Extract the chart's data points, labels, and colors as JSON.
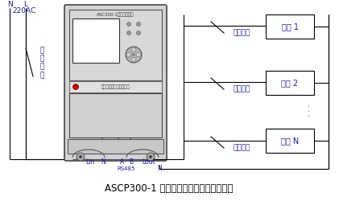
{
  "title": "ASCP300-1 型限流式保护器的应用接线图",
  "bg_color": "#ffffff",
  "line_color": "#000000",
  "text_color_blue": "#1a1aaa",
  "N_label": "N",
  "L_label": "L",
  "voltage_label": "220AC",
  "switch_label": "进\n户\n开\n关",
  "Lin_label": "Lin",
  "N_bot_label": "N",
  "A_label": "A",
  "B_label": "B",
  "RS485_label": "RS485",
  "Lout_label": "Lout",
  "N_out_label": "N",
  "branch_labels": [
    "分路开关",
    "分路开关",
    "分路开关"
  ],
  "load_labels": [
    "负载 1",
    "负载 2",
    "负载 N"
  ],
  "dots_label": "· · ·",
  "device_title": "ASC300-1限流式保护器",
  "company_label": "安科瑞电气股份有限公司"
}
